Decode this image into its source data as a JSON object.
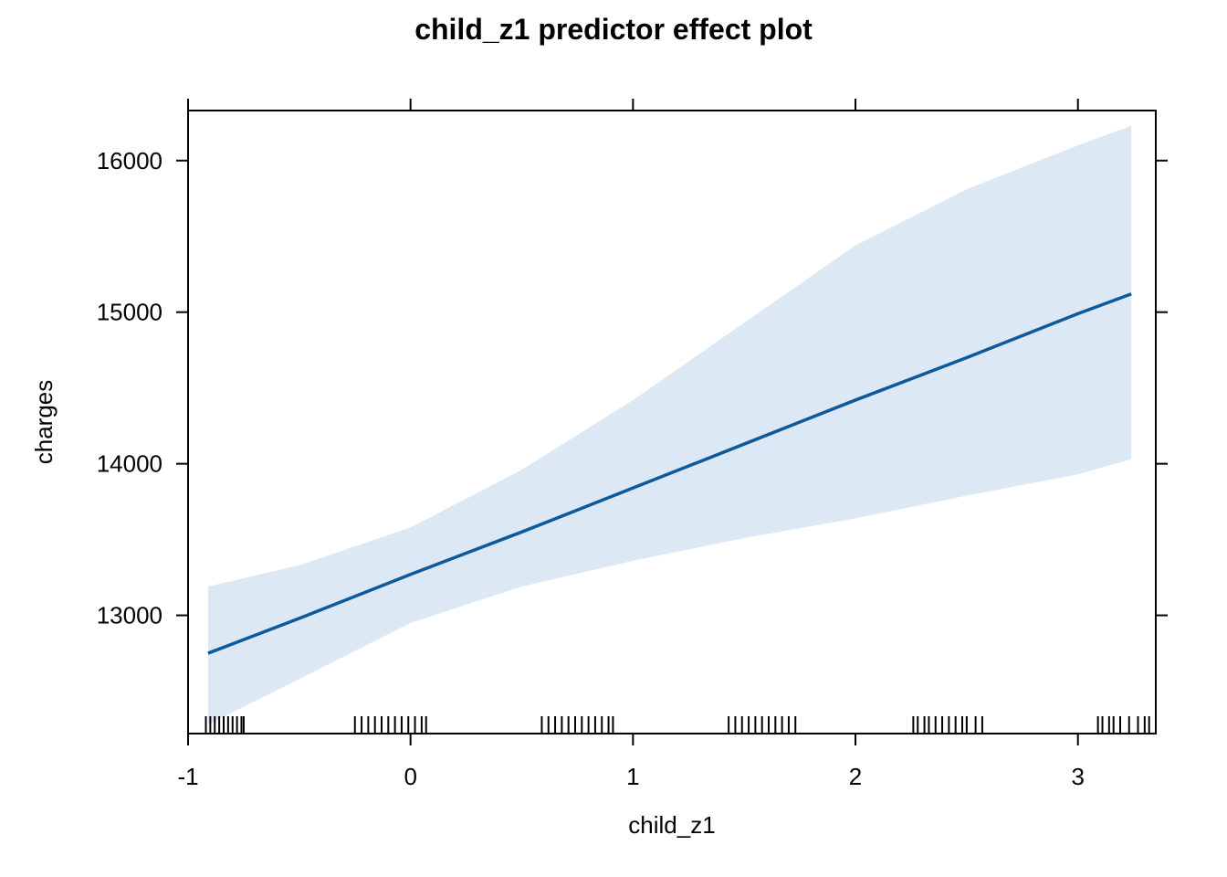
{
  "chart_data": {
    "type": "line",
    "title": "child_z1 predictor effect plot",
    "xlabel": "child_z1",
    "ylabel": "charges",
    "xlim": [
      -1.0,
      3.35
    ],
    "ylim": [
      12220,
      16330
    ],
    "xticks": [
      -1,
      0,
      1,
      2,
      3
    ],
    "xtick_labels": [
      "-1",
      "0",
      "1",
      "2",
      "3"
    ],
    "yticks": [
      13000,
      14000,
      15000,
      16000
    ],
    "ytick_labels": [
      "13000",
      "14000",
      "15000",
      "16000"
    ],
    "grid": false,
    "legend": "none",
    "colors": {
      "line": "#0b5a9e",
      "band": "#dce8f3",
      "rug": "#000000",
      "axis": "#000000"
    },
    "series": [
      {
        "x": [
          -0.91,
          -0.5,
          0,
          0.5,
          1,
          1.5,
          2,
          2.5,
          3,
          3.24
        ],
        "values": [
          12750,
          12980,
          13270,
          13550,
          13840,
          14130,
          14420,
          14700,
          14990,
          15120
        ]
      }
    ],
    "band": {
      "x": [
        -0.91,
        -0.5,
        0,
        0.5,
        1,
        1.5,
        2,
        2.5,
        3,
        3.24
      ],
      "upper": [
        13190,
        13330,
        13580,
        13960,
        14420,
        14930,
        15440,
        15810,
        16100,
        16230
      ],
      "lower": [
        12280,
        12580,
        12950,
        13190,
        13360,
        13510,
        13640,
        13790,
        13930,
        14030
      ]
    },
    "rug_x": [
      -0.92,
      -0.9,
      -0.88,
      -0.86,
      -0.84,
      -0.82,
      -0.8,
      -0.78,
      -0.76,
      -0.75,
      -0.25,
      -0.22,
      -0.19,
      -0.16,
      -0.13,
      -0.1,
      -0.07,
      -0.04,
      -0.01,
      0.02,
      0.05,
      0.07,
      0.59,
      0.62,
      0.65,
      0.68,
      0.71,
      0.74,
      0.77,
      0.8,
      0.83,
      0.86,
      0.89,
      0.91,
      1.43,
      1.46,
      1.49,
      1.52,
      1.55,
      1.58,
      1.61,
      1.64,
      1.67,
      1.7,
      1.73,
      2.26,
      2.28,
      2.31,
      2.33,
      2.36,
      2.39,
      2.42,
      2.45,
      2.48,
      2.5,
      2.54,
      2.57,
      3.09,
      3.11,
      3.14,
      3.16,
      3.19,
      3.23,
      3.27,
      3.3,
      3.32
    ]
  }
}
